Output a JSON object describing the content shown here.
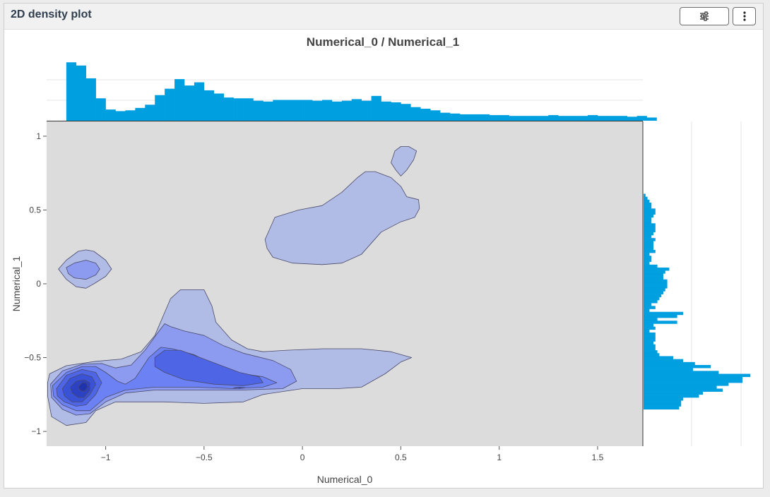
{
  "panel": {
    "title": "2D density plot",
    "settings_icon": "sliders-icon",
    "menu_icon": "kebab-menu-icon"
  },
  "colors": {
    "histogram": "#009fdf",
    "plot_background": "#dcdcdc",
    "density_levels": [
      "#b0bbe6",
      "#8c9bef",
      "#6c82f4",
      "#4e66e6",
      "#3a52d6",
      "#2c42c2",
      "#1f33ac"
    ]
  },
  "chart_data": {
    "type": "heatmap",
    "subtype": "2d-density-contour-with-marginal-histograms",
    "title": "Numerical_0 / Numerical_1",
    "xlabel": "Numerical_0",
    "ylabel": "Numerical_1",
    "xlim": [
      -1.3,
      1.73
    ],
    "ylim": [
      -1.1,
      1.1
    ],
    "x_ticks": [
      -1,
      -0.5,
      0,
      0.5,
      1,
      1.5
    ],
    "x_tick_labels": [
      "−1",
      "−0.5",
      "0",
      "0.5",
      "1",
      "1.5"
    ],
    "y_ticks": [
      -1,
      -0.5,
      0,
      0.5,
      1
    ],
    "y_tick_labels": [
      "−1",
      "−0.5",
      "0",
      "0.5",
      "1"
    ],
    "grid": false,
    "density_contours": [
      {
        "level": 1,
        "polygons": [
          [
            [
              -1.285,
              -0.61
            ],
            [
              -1.2,
              -0.555
            ],
            [
              -1.05,
              -0.525
            ],
            [
              -0.92,
              -0.51
            ],
            [
              -0.82,
              -0.46
            ],
            [
              -0.75,
              -0.35
            ],
            [
              -0.67,
              -0.1
            ],
            [
              -0.62,
              -0.04
            ],
            [
              -0.5,
              -0.04
            ],
            [
              -0.46,
              -0.15
            ],
            [
              -0.44,
              -0.26
            ],
            [
              -0.36,
              -0.38
            ],
            [
              -0.28,
              -0.44
            ],
            [
              -0.2,
              -0.46
            ],
            [
              -0.08,
              -0.45
            ],
            [
              0.1,
              -0.44
            ],
            [
              0.3,
              -0.44
            ],
            [
              0.45,
              -0.46
            ],
            [
              0.555,
              -0.5
            ],
            [
              0.5,
              -0.53
            ],
            [
              0.42,
              -0.61
            ],
            [
              0.3,
              -0.7
            ],
            [
              0.18,
              -0.71
            ],
            [
              0.0,
              -0.71
            ],
            [
              -0.2,
              -0.75
            ],
            [
              -0.3,
              -0.8
            ],
            [
              -0.5,
              -0.81
            ],
            [
              -0.7,
              -0.8
            ],
            [
              -0.95,
              -0.8
            ],
            [
              -1.05,
              -0.86
            ],
            [
              -1.1,
              -0.94
            ],
            [
              -1.2,
              -0.96
            ],
            [
              -1.275,
              -0.9
            ],
            [
              -1.295,
              -0.76
            ],
            [
              -1.295,
              -0.67
            ]
          ],
          [
            [
              -0.19,
              0.3
            ],
            [
              -0.14,
              0.45
            ],
            [
              -0.02,
              0.5
            ],
            [
              0.1,
              0.53
            ],
            [
              0.2,
              0.62
            ],
            [
              0.28,
              0.72
            ],
            [
              0.32,
              0.76
            ],
            [
              0.37,
              0.76
            ],
            [
              0.45,
              0.72
            ],
            [
              0.5,
              0.66
            ],
            [
              0.53,
              0.59
            ],
            [
              0.56,
              0.58
            ],
            [
              0.59,
              0.57
            ],
            [
              0.595,
              0.51
            ],
            [
              0.57,
              0.45
            ],
            [
              0.5,
              0.42
            ],
            [
              0.4,
              0.35
            ],
            [
              0.3,
              0.2
            ],
            [
              0.2,
              0.14
            ],
            [
              0.1,
              0.13
            ],
            [
              -0.05,
              0.14
            ],
            [
              -0.15,
              0.18
            ],
            [
              -0.18,
              0.24
            ]
          ],
          [
            [
              0.45,
              0.82
            ],
            [
              0.47,
              0.9
            ],
            [
              0.5,
              0.93
            ],
            [
              0.54,
              0.93
            ],
            [
              0.58,
              0.9
            ],
            [
              0.565,
              0.84
            ],
            [
              0.53,
              0.77
            ],
            [
              0.5,
              0.73
            ],
            [
              0.475,
              0.77
            ]
          ],
          [
            [
              -1.24,
              0.1
            ],
            [
              -1.2,
              0.16
            ],
            [
              -1.14,
              0.22
            ],
            [
              -1.1,
              0.23
            ],
            [
              -1.06,
              0.22
            ],
            [
              -1.0,
              0.16
            ],
            [
              -0.97,
              0.1
            ],
            [
              -1.0,
              0.05
            ],
            [
              -1.06,
              0.0
            ],
            [
              -1.1,
              -0.03
            ],
            [
              -1.15,
              -0.02
            ],
            [
              -1.2,
              0.03
            ]
          ]
        ]
      },
      {
        "level": 2,
        "polygons": [
          [
            [
              -1.28,
              -0.68
            ],
            [
              -1.22,
              -0.59
            ],
            [
              -1.12,
              -0.545
            ],
            [
              -1.02,
              -0.54
            ],
            [
              -0.95,
              -0.57
            ],
            [
              -0.87,
              -0.55
            ],
            [
              -0.8,
              -0.45
            ],
            [
              -0.74,
              -0.34
            ],
            [
              -0.7,
              -0.27
            ],
            [
              -0.67,
              -0.29
            ],
            [
              -0.6,
              -0.32
            ],
            [
              -0.5,
              -0.35
            ],
            [
              -0.4,
              -0.42
            ],
            [
              -0.3,
              -0.47
            ],
            [
              -0.15,
              -0.52
            ],
            [
              -0.06,
              -0.58
            ],
            [
              -0.03,
              -0.66
            ],
            [
              -0.1,
              -0.71
            ],
            [
              -0.3,
              -0.72
            ],
            [
              -0.52,
              -0.72
            ],
            [
              -0.75,
              -0.72
            ],
            [
              -0.9,
              -0.74
            ],
            [
              -1.0,
              -0.8
            ],
            [
              -1.08,
              -0.88
            ],
            [
              -1.15,
              -0.89
            ],
            [
              -1.22,
              -0.85
            ],
            [
              -1.275,
              -0.77
            ]
          ],
          [
            [
              -1.2,
              0.11
            ],
            [
              -1.16,
              0.14
            ],
            [
              -1.1,
              0.16
            ],
            [
              -1.05,
              0.14
            ],
            [
              -1.03,
              0.1
            ],
            [
              -1.05,
              0.06
            ],
            [
              -1.1,
              0.03
            ],
            [
              -1.16,
              0.04
            ],
            [
              -1.19,
              0.07
            ]
          ]
        ]
      },
      {
        "level": 3,
        "polygons": [
          [
            [
              -1.27,
              -0.69
            ],
            [
              -1.2,
              -0.6
            ],
            [
              -1.12,
              -0.56
            ],
            [
              -1.05,
              -0.56
            ],
            [
              -1.0,
              -0.6
            ],
            [
              -0.94,
              -0.66
            ],
            [
              -0.9,
              -0.68
            ],
            [
              -0.85,
              -0.64
            ],
            [
              -0.78,
              -0.5
            ],
            [
              -0.72,
              -0.43
            ],
            [
              -0.66,
              -0.44
            ],
            [
              -0.55,
              -0.48
            ],
            [
              -0.45,
              -0.55
            ],
            [
              -0.35,
              -0.6
            ],
            [
              -0.2,
              -0.63
            ],
            [
              -0.13,
              -0.67
            ],
            [
              -0.2,
              -0.7
            ],
            [
              -0.35,
              -0.71
            ],
            [
              -0.55,
              -0.7
            ],
            [
              -0.75,
              -0.7
            ],
            [
              -0.9,
              -0.72
            ],
            [
              -1.0,
              -0.77
            ],
            [
              -1.08,
              -0.86
            ],
            [
              -1.15,
              -0.86
            ],
            [
              -1.22,
              -0.82
            ],
            [
              -1.265,
              -0.76
            ]
          ]
        ]
      },
      {
        "level": 4,
        "polygons": [
          [
            [
              -1.25,
              -0.71
            ],
            [
              -1.2,
              -0.62
            ],
            [
              -1.12,
              -0.58
            ],
            [
              -1.05,
              -0.6
            ],
            [
              -1.02,
              -0.67
            ],
            [
              -1.05,
              -0.75
            ],
            [
              -1.1,
              -0.82
            ],
            [
              -1.15,
              -0.83
            ],
            [
              -1.21,
              -0.8
            ],
            [
              -1.245,
              -0.76
            ]
          ],
          [
            [
              -0.75,
              -0.5
            ],
            [
              -0.7,
              -0.45
            ],
            [
              -0.62,
              -0.45
            ],
            [
              -0.52,
              -0.5
            ],
            [
              -0.42,
              -0.55
            ],
            [
              -0.32,
              -0.6
            ],
            [
              -0.22,
              -0.63
            ],
            [
              -0.2,
              -0.67
            ],
            [
              -0.3,
              -0.69
            ],
            [
              -0.45,
              -0.68
            ],
            [
              -0.6,
              -0.65
            ],
            [
              -0.7,
              -0.6
            ],
            [
              -0.75,
              -0.56
            ]
          ]
        ]
      },
      {
        "level": 5,
        "polygons": [
          [
            [
              -1.22,
              -0.71
            ],
            [
              -1.18,
              -0.64
            ],
            [
              -1.12,
              -0.61
            ],
            [
              -1.07,
              -0.63
            ],
            [
              -1.05,
              -0.68
            ],
            [
              -1.08,
              -0.75
            ],
            [
              -1.12,
              -0.8
            ],
            [
              -1.17,
              -0.8
            ],
            [
              -1.21,
              -0.76
            ]
          ],
          [
            [
              -0.35,
              -0.705
            ],
            [
              -0.32,
              -0.7
            ],
            [
              -0.29,
              -0.705
            ],
            [
              -0.32,
              -0.71
            ]
          ]
        ]
      },
      {
        "level": 6,
        "polygons": [
          [
            [
              -1.18,
              -0.7
            ],
            [
              -1.15,
              -0.66
            ],
            [
              -1.11,
              -0.65
            ],
            [
              -1.08,
              -0.67
            ],
            [
              -1.08,
              -0.72
            ],
            [
              -1.11,
              -0.77
            ],
            [
              -1.14,
              -0.77
            ],
            [
              -1.17,
              -0.74
            ]
          ]
        ]
      },
      {
        "level": 7,
        "polygons": [
          [
            [
              -1.14,
              -0.7
            ],
            [
              -1.12,
              -0.67
            ],
            [
              -1.1,
              -0.67
            ],
            [
              -1.09,
              -0.7
            ],
            [
              -1.11,
              -0.73
            ],
            [
              -1.13,
              -0.72
            ]
          ]
        ]
      }
    ],
    "marginal_x_histogram": {
      "bin_start": -1.2,
      "bin_width": 0.05,
      "counts": [
        73,
        69,
        53,
        28,
        14,
        12,
        13,
        16,
        20,
        32,
        40,
        52,
        44,
        48,
        38,
        34,
        29,
        28,
        28,
        25,
        24,
        26,
        26,
        26,
        26,
        25,
        26,
        24,
        25,
        27,
        25,
        31,
        24,
        23,
        21,
        17,
        15,
        13,
        10,
        9,
        8,
        8,
        8,
        7,
        7,
        6,
        6,
        6,
        6,
        7,
        6,
        6,
        6,
        7,
        6,
        6,
        6,
        5,
        6,
        4
      ]
    },
    "marginal_y_histogram": {
      "bin_start": -0.85,
      "bin_width": 0.02,
      "counts": [
        18,
        19,
        19,
        20,
        28,
        30,
        40,
        37,
        43,
        50,
        50,
        54,
        38,
        25,
        34,
        26,
        20,
        15,
        8,
        7,
        6,
        6,
        5,
        6,
        6,
        6,
        3,
        6,
        5,
        17,
        7,
        17,
        20,
        3,
        6,
        4,
        7,
        8,
        9,
        10,
        11,
        12,
        12,
        12,
        10,
        10,
        11,
        13,
        7,
        3,
        4,
        4,
        3,
        6,
        5,
        5,
        5,
        6,
        4,
        5,
        6,
        6,
        6,
        4,
        4,
        5,
        6,
        6,
        4,
        4,
        3,
        2,
        1
      ]
    }
  }
}
